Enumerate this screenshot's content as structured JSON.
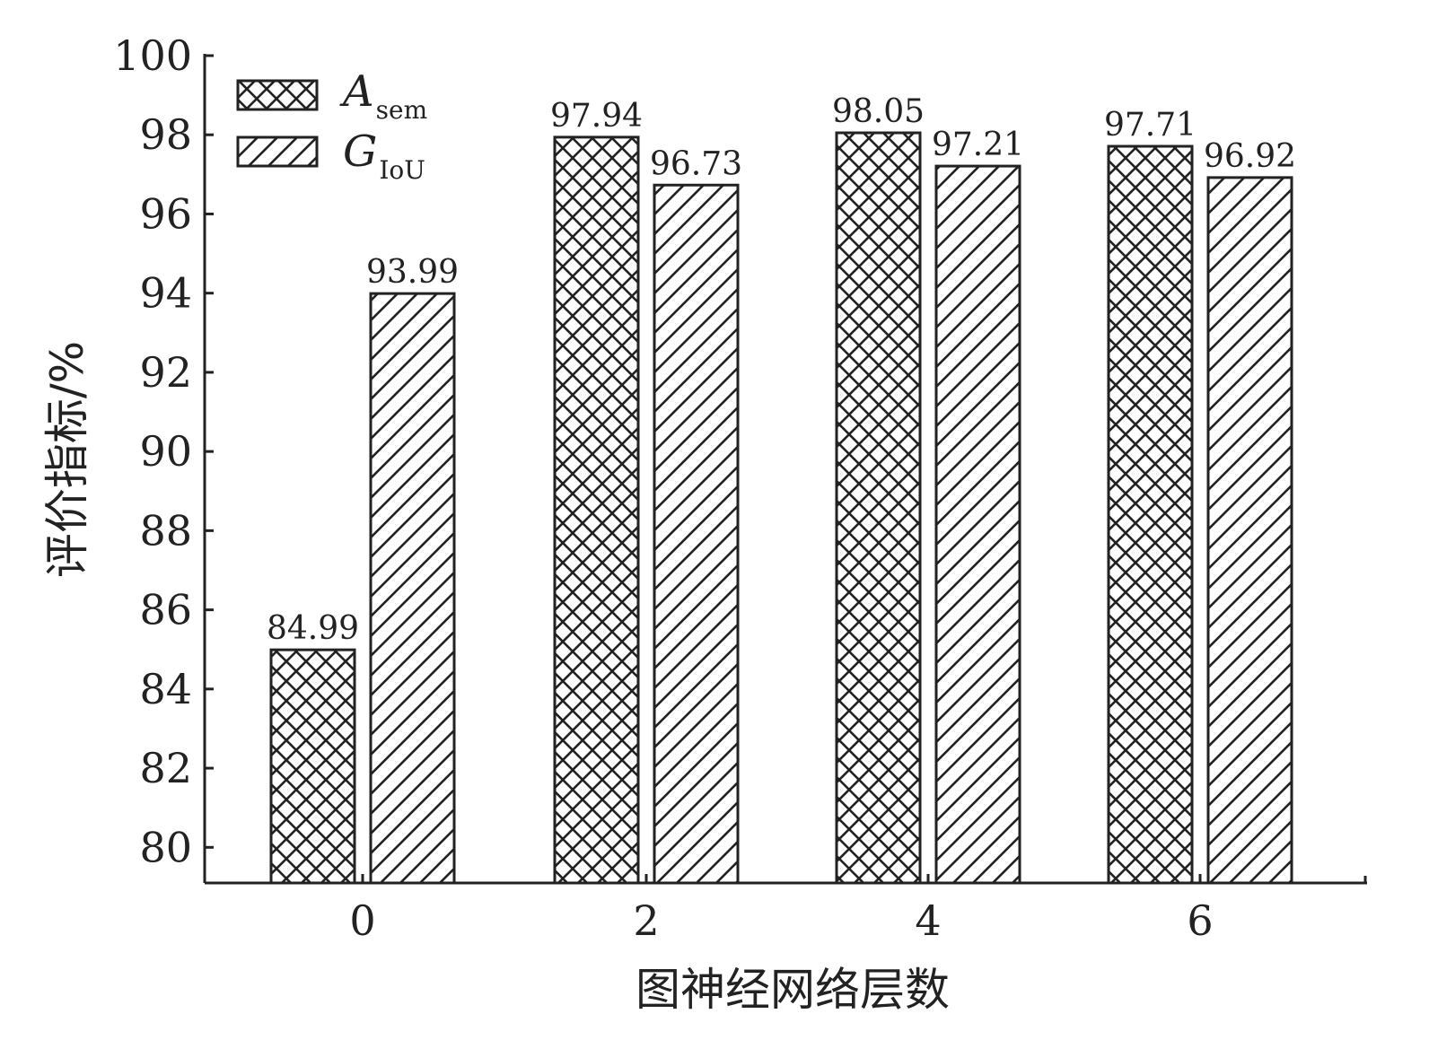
{
  "chart_data": {
    "type": "bar",
    "categories": [
      "0",
      "2",
      "4",
      "6"
    ],
    "series": [
      {
        "name": "A",
        "name_subscript": "sem",
        "pattern": "crosshatch",
        "values": [
          84.99,
          97.94,
          98.05,
          97.71
        ]
      },
      {
        "name": "G",
        "name_subscript": "IoU",
        "pattern": "diagonal",
        "values": [
          93.99,
          96.73,
          97.21,
          96.92
        ]
      }
    ],
    "data_labels": [
      [
        "84.99",
        "97.94",
        "98.05",
        "97.71"
      ],
      [
        "93.99",
        "96.73",
        "97.21",
        "96.92"
      ]
    ],
    "yticks": [
      "80",
      "82",
      "84",
      "86",
      "88",
      "90",
      "92",
      "94",
      "96",
      "98",
      "100"
    ],
    "ylim": [
      79.1,
      100
    ],
    "xlabel": "图神经网络层数",
    "ylabel": "评价指标/%",
    "legend_position": "top-left",
    "grid": false,
    "colors": {
      "ink": "#222222",
      "background": "#ffffff"
    }
  }
}
